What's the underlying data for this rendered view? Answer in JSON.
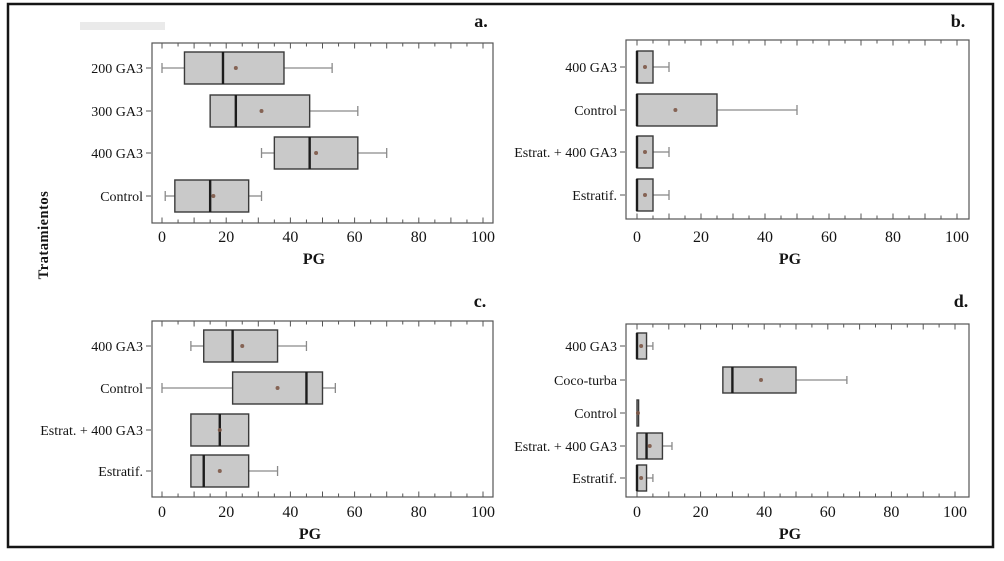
{
  "figure": {
    "ylabel": "Tratamientos",
    "background": "#ffffff",
    "border_color": "#151515"
  },
  "colors": {
    "box_fill": "#c9c9c9",
    "box_border": "#3a3a3a",
    "median": "#1c1c1c",
    "whisker": "#8a8a8a",
    "mean_dot": "#7d5847",
    "frame": "#555555",
    "tick": "#555555",
    "text": "#141414"
  },
  "chart_data": [
    {
      "type": "box",
      "panel_id": "a",
      "letter": "a.",
      "orientation": "horizontal",
      "xlabel": "PG",
      "xlim": [
        0,
        100
      ],
      "xticks": [
        0,
        20,
        40,
        60,
        80,
        100
      ],
      "minor_tick_step": 5,
      "categories": [
        "200 GA3",
        "300 GA3",
        "400 GA3",
        "Control"
      ],
      "boxes": [
        {
          "category": "200 GA3",
          "whisker_low": 0,
          "q1": 7,
          "median": 19,
          "q3": 38,
          "whisker_high": 53,
          "mean": 23
        },
        {
          "category": "300 GA3",
          "whisker_low": 15,
          "q1": 15,
          "median": 23,
          "q3": 46,
          "whisker_high": 61,
          "mean": 31
        },
        {
          "category": "400 GA3",
          "whisker_low": 31,
          "q1": 35,
          "median": 46,
          "q3": 61,
          "whisker_high": 70,
          "mean": 48
        },
        {
          "category": "Control",
          "whisker_low": 1,
          "q1": 4,
          "median": 15,
          "q3": 27,
          "whisker_high": 31,
          "mean": 16
        }
      ]
    },
    {
      "type": "box",
      "panel_id": "b",
      "letter": "b.",
      "orientation": "horizontal",
      "xlabel": "PG",
      "xlim": [
        0,
        100
      ],
      "xticks": [
        0,
        20,
        40,
        60,
        80,
        100
      ],
      "minor_tick_step": 5,
      "categories": [
        "400 GA3",
        "Control",
        "Estrat. + 400 GA3",
        "Estratif."
      ],
      "boxes": [
        {
          "category": "400 GA3",
          "whisker_low": 0,
          "q1": 0,
          "median": 0,
          "q3": 5,
          "whisker_high": 10,
          "mean": 2.5
        },
        {
          "category": "Control",
          "whisker_low": 0,
          "q1": 0,
          "median": 0,
          "q3": 25,
          "whisker_high": 50,
          "mean": 12
        },
        {
          "category": "Estrat. + 400 GA3",
          "whisker_low": 0,
          "q1": 0,
          "median": 0,
          "q3": 5,
          "whisker_high": 10,
          "mean": 2.5
        },
        {
          "category": "Estratif.",
          "whisker_low": 0,
          "q1": 0,
          "median": 0,
          "q3": 5,
          "whisker_high": 10,
          "mean": 2.5
        }
      ]
    },
    {
      "type": "box",
      "panel_id": "c",
      "letter": "c.",
      "orientation": "horizontal",
      "xlabel": "PG",
      "xlim": [
        0,
        100
      ],
      "xticks": [
        0,
        20,
        40,
        60,
        80,
        100
      ],
      "minor_tick_step": 5,
      "categories": [
        "400 GA3",
        "Control",
        "Estrat. + 400 GA3",
        "Estratif."
      ],
      "boxes": [
        {
          "category": "400 GA3",
          "whisker_low": 9,
          "q1": 13,
          "median": 22,
          "q3": 36,
          "whisker_high": 45,
          "mean": 25
        },
        {
          "category": "Control",
          "whisker_low": 0,
          "q1": 22,
          "median": 45,
          "q3": 50,
          "whisker_high": 54,
          "mean": 36
        },
        {
          "category": "Estrat. + 400 GA3",
          "whisker_low": 9,
          "q1": 9,
          "median": 18,
          "q3": 27,
          "whisker_high": 27,
          "mean": 18
        },
        {
          "category": "Estratif.",
          "whisker_low": 9,
          "q1": 9,
          "median": 13,
          "q3": 27,
          "whisker_high": 36,
          "mean": 18
        }
      ]
    },
    {
      "type": "box",
      "panel_id": "d",
      "letter": "d.",
      "orientation": "horizontal",
      "xlabel": "PG",
      "xlim": [
        0,
        100
      ],
      "xticks": [
        0,
        20,
        40,
        60,
        80,
        100
      ],
      "minor_tick_step": 5,
      "categories": [
        "400 GA3",
        "Coco-turba",
        "Control",
        "Estrat. + 400 GA3",
        "Estratif."
      ],
      "boxes": [
        {
          "category": "400 GA3",
          "whisker_low": 0,
          "q1": 0,
          "median": 0,
          "q3": 3,
          "whisker_high": 5,
          "mean": 1.3
        },
        {
          "category": "Coco-turba",
          "whisker_low": 27,
          "q1": 27,
          "median": 30,
          "q3": 50,
          "whisker_high": 66,
          "mean": 39
        },
        {
          "category": "Control",
          "whisker_low": 0,
          "q1": 0,
          "median": null,
          "q3": 0.5,
          "whisker_high": 0.5,
          "mean": 0.3
        },
        {
          "category": "Estrat. + 400 GA3",
          "whisker_low": 0,
          "q1": 0,
          "median": 3,
          "q3": 8,
          "whisker_high": 11,
          "mean": 4
        },
        {
          "category": "Estratif.",
          "whisker_low": 0,
          "q1": 0,
          "median": 0,
          "q3": 3,
          "whisker_high": 5,
          "mean": 1.3
        }
      ]
    }
  ]
}
